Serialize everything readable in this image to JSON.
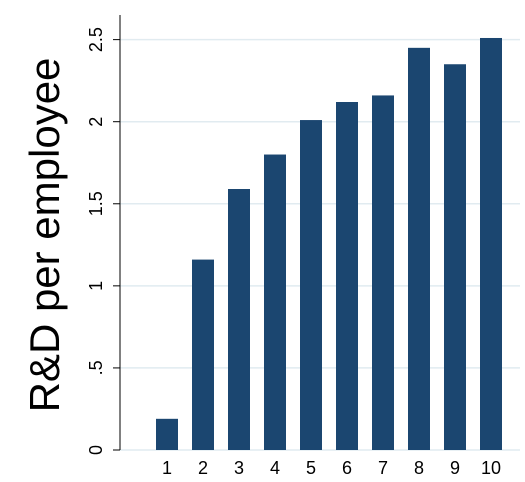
{
  "chart_data": {
    "type": "bar",
    "y_label": "R&D per employee",
    "categories": [
      "1",
      "2",
      "3",
      "4",
      "5",
      "6",
      "7",
      "8",
      "9",
      "10"
    ],
    "values": [
      0.19,
      1.16,
      1.59,
      1.8,
      2.01,
      2.12,
      2.16,
      2.45,
      2.35,
      2.51
    ],
    "color": "#1b4670",
    "ylim": [
      0,
      2.65
    ],
    "yticks": [
      0,
      {
        "value": 0.5,
        "label": ".5"
      },
      1,
      1.5,
      2,
      2.5
    ],
    "grid": true
  }
}
